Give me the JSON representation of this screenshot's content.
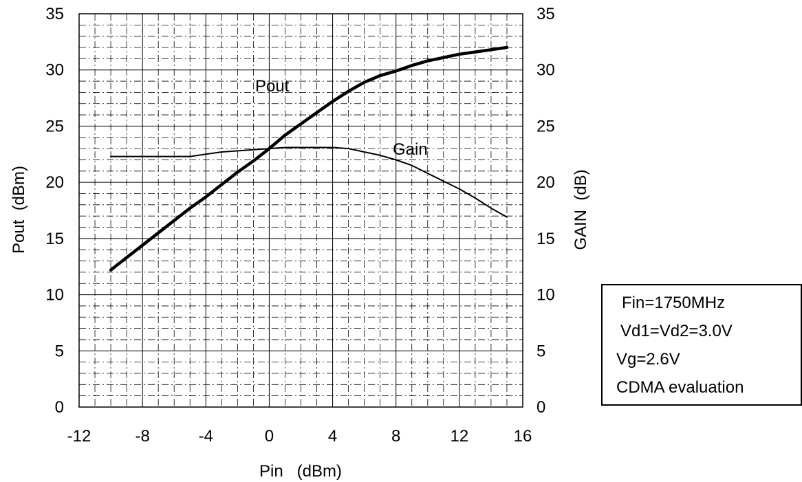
{
  "chart_data": {
    "type": "line",
    "xlabel": "Pin   (dBm)",
    "ylabel_left": "Pout  (dBm)",
    "ylabel_right": "GAIN  (dB)",
    "xlim": [
      -12,
      16
    ],
    "ylim_left": [
      0,
      35
    ],
    "ylim_right": [
      0,
      35
    ],
    "x_ticks": [
      "-12",
      "-8",
      "-4",
      "0",
      "4",
      "8",
      "12",
      "16"
    ],
    "y_ticks_left": [
      "0",
      "5",
      "10",
      "15",
      "20",
      "25",
      "30",
      "35"
    ],
    "y_ticks_right": [
      "0",
      "5",
      "10",
      "15",
      "20",
      "25",
      "30",
      "35"
    ],
    "grid": true,
    "series": [
      {
        "name": "Pout",
        "axis": "left",
        "x": [
          -10,
          -9,
          -8,
          -7,
          -6,
          -5,
          -4,
          -3,
          -2,
          -1,
          0,
          1,
          2,
          3,
          4,
          5,
          6,
          7,
          8,
          9,
          10,
          11,
          12,
          13,
          14,
          15
        ],
        "y": [
          12.2,
          13.3,
          14.4,
          15.5,
          16.6,
          17.7,
          18.7,
          19.8,
          20.9,
          21.9,
          23.0,
          24.2,
          25.2,
          26.2,
          27.2,
          28.1,
          28.9,
          29.5,
          29.9,
          30.4,
          30.8,
          31.1,
          31.4,
          31.6,
          31.8,
          32.0
        ]
      },
      {
        "name": "Gain",
        "axis": "right",
        "x": [
          -10,
          -9,
          -8,
          -7,
          -6,
          -5,
          -4,
          -3,
          -2,
          -1,
          0,
          1,
          2,
          3,
          4,
          5,
          6,
          7,
          8,
          9,
          10,
          11,
          12,
          13,
          14,
          15
        ],
        "y": [
          22.3,
          22.3,
          22.3,
          22.3,
          22.3,
          22.3,
          22.5,
          22.7,
          22.8,
          22.9,
          23.0,
          23.1,
          23.1,
          23.1,
          23.1,
          23.0,
          22.7,
          22.4,
          22.0,
          21.5,
          20.8,
          20.1,
          19.4,
          18.6,
          17.7,
          16.9
        ]
      }
    ],
    "annotation_lines": [
      "Fin=1750MHz",
      "Vd1=Vd2=3.0V",
      "Vg=2.6V",
      "CDMA evaluation"
    ]
  }
}
